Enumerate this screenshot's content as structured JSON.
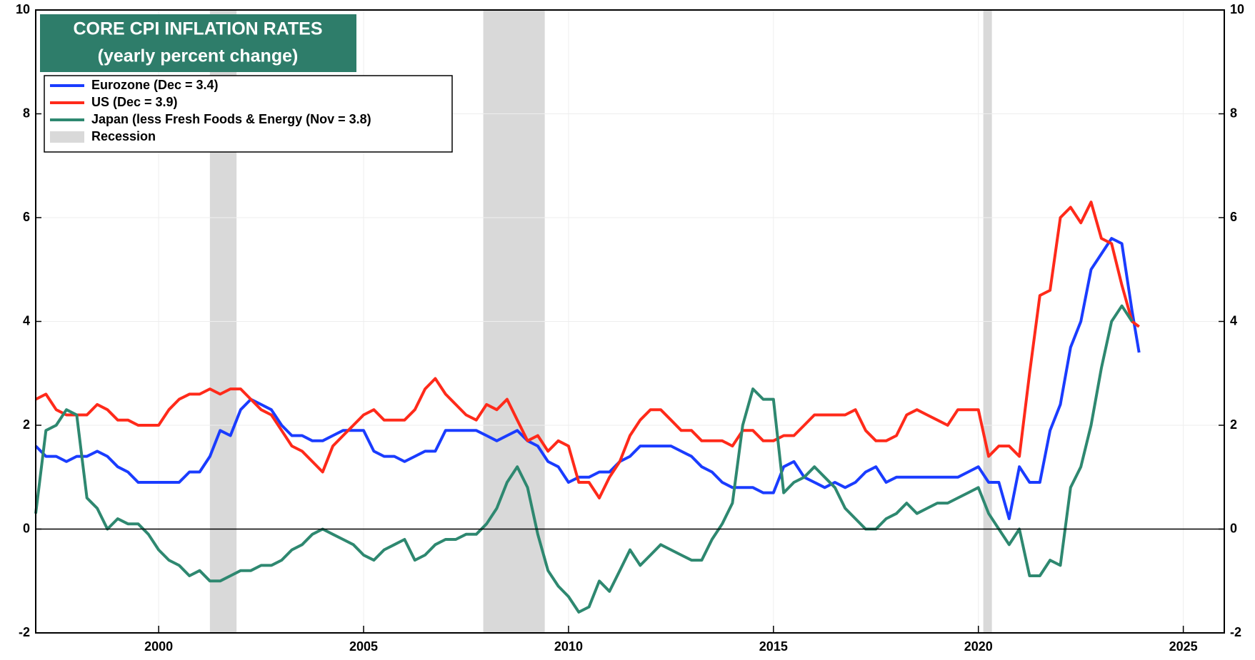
{
  "chart_data": {
    "type": "line",
    "title": "CORE CPI INFLATION RATES",
    "subtitle": "(yearly percent change)",
    "x": [
      1997,
      1997.25,
      1997.5,
      1997.75,
      1998,
      1998.25,
      1998.5,
      1998.75,
      1999,
      1999.25,
      1999.5,
      1999.75,
      2000,
      2000.25,
      2000.5,
      2000.75,
      2001,
      2001.25,
      2001.5,
      2001.75,
      2002,
      2002.25,
      2002.5,
      2002.75,
      2003,
      2003.25,
      2003.5,
      2003.75,
      2004,
      2004.25,
      2004.5,
      2004.75,
      2005,
      2005.25,
      2005.5,
      2005.75,
      2006,
      2006.25,
      2006.5,
      2006.75,
      2007,
      2007.25,
      2007.5,
      2007.75,
      2008,
      2008.25,
      2008.5,
      2008.75,
      2009,
      2009.25,
      2009.5,
      2009.75,
      2010,
      2010.25,
      2010.5,
      2010.75,
      2011,
      2011.25,
      2011.5,
      2011.75,
      2012,
      2012.25,
      2012.5,
      2012.75,
      2013,
      2013.25,
      2013.5,
      2013.75,
      2014,
      2014.25,
      2014.5,
      2014.75,
      2015,
      2015.25,
      2015.5,
      2015.75,
      2016,
      2016.25,
      2016.5,
      2016.75,
      2017,
      2017.25,
      2017.5,
      2017.75,
      2018,
      2018.25,
      2018.5,
      2018.75,
      2019,
      2019.25,
      2019.5,
      2019.75,
      2020,
      2020.25,
      2020.5,
      2020.75,
      2021,
      2021.25,
      2021.5,
      2021.75,
      2022,
      2022.25,
      2022.5,
      2022.75,
      2023,
      2023.25,
      2023.5,
      2023.75,
      2023.92
    ],
    "series": [
      {
        "name": "Eurozone (Dec = 3.4)",
        "color": "#1a3cff",
        "values": [
          1.6,
          1.4,
          1.4,
          1.3,
          1.4,
          1.4,
          1.5,
          1.4,
          1.2,
          1.1,
          0.9,
          0.9,
          0.9,
          0.9,
          0.9,
          1.1,
          1.1,
          1.4,
          1.9,
          1.8,
          2.3,
          2.5,
          2.4,
          2.3,
          2.0,
          1.8,
          1.8,
          1.7,
          1.7,
          1.8,
          1.9,
          1.9,
          1.9,
          1.5,
          1.4,
          1.4,
          1.3,
          1.4,
          1.5,
          1.5,
          1.9,
          1.9,
          1.9,
          1.9,
          1.8,
          1.7,
          1.8,
          1.9,
          1.7,
          1.6,
          1.3,
          1.2,
          0.9,
          1.0,
          1.0,
          1.1,
          1.1,
          1.3,
          1.4,
          1.6,
          1.6,
          1.6,
          1.6,
          1.5,
          1.4,
          1.2,
          1.1,
          0.9,
          0.8,
          0.8,
          0.8,
          0.7,
          0.7,
          1.2,
          1.3,
          1.0,
          0.9,
          0.8,
          0.9,
          0.8,
          0.9,
          1.1,
          1.2,
          0.9,
          1.0,
          1.0,
          1.0,
          1.0,
          1.0,
          1.0,
          1.0,
          1.1,
          1.2,
          0.9,
          0.9,
          0.2,
          1.2,
          0.9,
          0.9,
          1.9,
          2.4,
          3.5,
          4.0,
          5.0,
          5.3,
          5.6,
          5.5,
          4.2,
          3.4
        ]
      },
      {
        "name": "US (Dec = 3.9)",
        "color": "#ff2a1a",
        "values": [
          2.5,
          2.6,
          2.3,
          2.2,
          2.2,
          2.2,
          2.4,
          2.3,
          2.1,
          2.1,
          2.0,
          2.0,
          2.0,
          2.3,
          2.5,
          2.6,
          2.6,
          2.7,
          2.6,
          2.7,
          2.7,
          2.5,
          2.3,
          2.2,
          1.9,
          1.6,
          1.5,
          1.3,
          1.1,
          1.6,
          1.8,
          2.0,
          2.2,
          2.3,
          2.1,
          2.1,
          2.1,
          2.3,
          2.7,
          2.9,
          2.6,
          2.4,
          2.2,
          2.1,
          2.4,
          2.3,
          2.5,
          2.1,
          1.7,
          1.8,
          1.5,
          1.7,
          1.6,
          0.9,
          0.9,
          0.6,
          1.0,
          1.3,
          1.8,
          2.1,
          2.3,
          2.3,
          2.1,
          1.9,
          1.9,
          1.7,
          1.7,
          1.7,
          1.6,
          1.9,
          1.9,
          1.7,
          1.7,
          1.8,
          1.8,
          2.0,
          2.2,
          2.2,
          2.2,
          2.2,
          2.3,
          1.9,
          1.7,
          1.7,
          1.8,
          2.2,
          2.3,
          2.2,
          2.1,
          2.0,
          2.3,
          2.3,
          2.3,
          1.4,
          1.6,
          1.6,
          1.4,
          3.0,
          4.5,
          4.6,
          6.0,
          6.2,
          5.9,
          6.3,
          5.6,
          5.5,
          4.7,
          4.0,
          3.9
        ]
      },
      {
        "name": "Japan (less Fresh Foods & Energy (Nov = 3.8)",
        "color": "#2e8870",
        "values": [
          0.3,
          1.9,
          2.0,
          2.3,
          2.2,
          0.6,
          0.4,
          0.0,
          0.2,
          0.1,
          0.1,
          -0.1,
          -0.4,
          -0.6,
          -0.7,
          -0.9,
          -0.8,
          -1.0,
          -1.0,
          -0.9,
          -0.8,
          -0.8,
          -0.7,
          -0.7,
          -0.6,
          -0.4,
          -0.3,
          -0.1,
          0.0,
          -0.1,
          -0.2,
          -0.3,
          -0.5,
          -0.6,
          -0.4,
          -0.3,
          -0.2,
          -0.6,
          -0.5,
          -0.3,
          -0.2,
          -0.2,
          -0.1,
          -0.1,
          0.1,
          0.4,
          0.9,
          1.2,
          0.8,
          -0.1,
          -0.8,
          -1.1,
          -1.3,
          -1.6,
          -1.5,
          -1.0,
          -1.2,
          -0.8,
          -0.4,
          -0.7,
          -0.5,
          -0.3,
          -0.4,
          -0.5,
          -0.6,
          -0.6,
          -0.2,
          0.1,
          0.5,
          2.0,
          2.7,
          2.5,
          2.5,
          0.7,
          0.9,
          1.0,
          1.2,
          1.0,
          0.8,
          0.4,
          0.2,
          0.0,
          0.0,
          0.2,
          0.3,
          0.5,
          0.3,
          0.4,
          0.5,
          0.5,
          0.6,
          0.7,
          0.8,
          0.3,
          0.0,
          -0.3,
          0.0,
          -0.9,
          -0.9,
          -0.6,
          -0.7,
          0.8,
          1.2,
          2.0,
          3.1,
          4.0,
          4.3,
          4.0,
          null
        ]
      }
    ],
    "recession_label": "Recession",
    "recessions": [
      [
        2001.25,
        2001.9
      ],
      [
        2007.92,
        2009.42
      ],
      [
        2020.12,
        2020.33
      ]
    ],
    "xlim": [
      1997,
      2026
    ],
    "xticks": [
      2000,
      2005,
      2010,
      2015,
      2020,
      2025
    ],
    "ylim": [
      -2,
      10
    ],
    "yticks": [
      -2,
      0,
      2,
      4,
      6,
      8,
      10
    ],
    "grid": true,
    "legend": "upper left"
  }
}
